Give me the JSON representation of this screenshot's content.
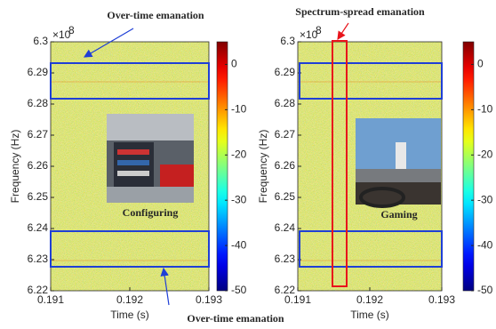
{
  "chart_data": [
    {
      "type": "heatmap",
      "xlabel": "Time (s)",
      "ylabel": "Frequency (Hz)",
      "xlim": [
        0.191,
        0.193
      ],
      "xticks": [
        0.191,
        0.192,
        0.193
      ],
      "ylim": [
        6.22,
        6.3
      ],
      "yticks": [
        6.22,
        6.23,
        6.24,
        6.25,
        6.26,
        6.27,
        6.28,
        6.29,
        6.3
      ],
      "yscale_base": "×10",
      "yscale_exponent": 8,
      "colormap": "jet",
      "clim": [
        -50,
        5
      ],
      "cticks": [
        -50,
        -40,
        -30,
        -20,
        -10,
        0
      ],
      "inset_caption": "Configuring",
      "annotations": [
        "Over-time emanation",
        "Over-time emanation"
      ],
      "annotation_color": "#1f3fd6"
    },
    {
      "type": "heatmap",
      "xlabel": "Time (s)",
      "ylabel": "Frequency (Hz)",
      "xlim": [
        0.191,
        0.193
      ],
      "xticks": [
        0.191,
        0.192,
        0.193
      ],
      "ylim": [
        6.22,
        6.3
      ],
      "yticks": [
        6.22,
        6.23,
        6.24,
        6.25,
        6.26,
        6.27,
        6.28,
        6.29,
        6.3
      ],
      "yscale_base": "×10",
      "yscale_exponent": 8,
      "colormap": "jet",
      "clim": [
        -50,
        5
      ],
      "cticks": [
        -50,
        -40,
        -30,
        -20,
        -10,
        0
      ],
      "inset_caption": "Gaming",
      "annotations": [
        "Spectrum-spread emanation"
      ],
      "annotation_color": "#e8141b"
    }
  ]
}
